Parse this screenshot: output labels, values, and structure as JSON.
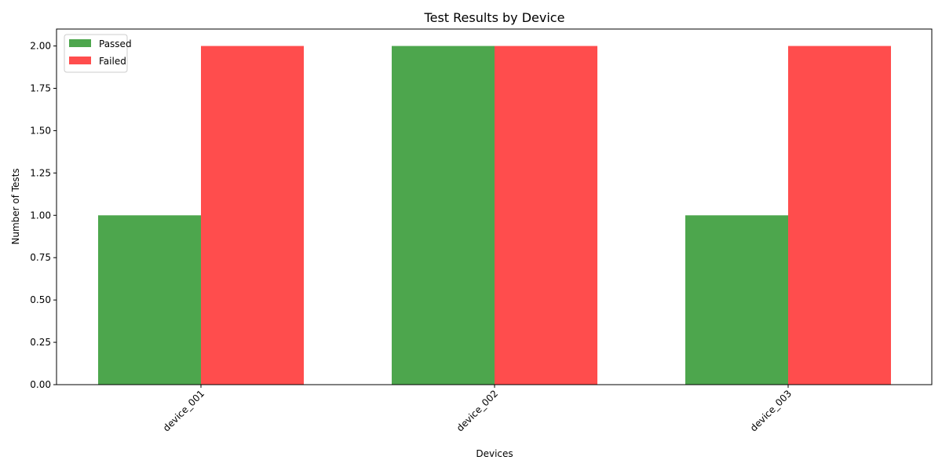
{
  "chart_data": {
    "type": "bar",
    "title": "Test Results by Device",
    "xlabel": "Devices",
    "ylabel": "Number of Tests",
    "categories": [
      "device_001",
      "device_002",
      "device_003"
    ],
    "series": [
      {
        "name": "Passed",
        "values": [
          1,
          2,
          1
        ],
        "color": "#4da64d"
      },
      {
        "name": "Failed",
        "values": [
          2,
          2,
          2
        ],
        "color": "#ff4d4d"
      }
    ],
    "ylim": [
      0,
      2.1
    ],
    "yticks": [
      "0.00",
      "0.25",
      "0.50",
      "0.75",
      "1.00",
      "1.25",
      "1.50",
      "1.75",
      "2.00"
    ],
    "legend_position": "top-left",
    "grid": false
  }
}
